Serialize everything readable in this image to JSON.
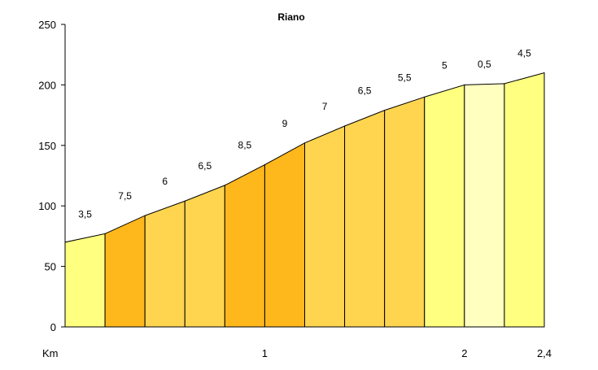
{
  "chart_data": {
    "type": "area",
    "title": "Riano",
    "xlabel": "Km",
    "ylabel": "",
    "xlim": [
      0,
      2.4
    ],
    "ylim": [
      0,
      250
    ],
    "yticks": [
      "0",
      "50",
      "100",
      "150",
      "200",
      "250"
    ],
    "xticks": [
      {
        "value": 0,
        "label": "Km"
      },
      {
        "value": 1,
        "label": "1"
      },
      {
        "value": 2,
        "label": "2"
      },
      {
        "value": 2.4,
        "label": "2,4"
      }
    ],
    "grid": false,
    "segments": [
      {
        "x0": 0.0,
        "x1": 0.2,
        "y0": 70,
        "y1": 77,
        "gradient": "3,5",
        "color": "#ffff80"
      },
      {
        "x0": 0.2,
        "x1": 0.4,
        "y0": 77,
        "y1": 92,
        "gradient": "7,5",
        "color": "#ffb81c"
      },
      {
        "x0": 0.4,
        "x1": 0.6,
        "y0": 92,
        "y1": 104,
        "gradient": "6",
        "color": "#ffd550"
      },
      {
        "x0": 0.6,
        "x1": 0.8,
        "y0": 104,
        "y1": 117,
        "gradient": "6,5",
        "color": "#ffd550"
      },
      {
        "x0": 0.8,
        "x1": 1.0,
        "y0": 117,
        "y1": 134,
        "gradient": "8,5",
        "color": "#ffb81c"
      },
      {
        "x0": 1.0,
        "x1": 1.2,
        "y0": 134,
        "y1": 152,
        "gradient": "9",
        "color": "#ffb81c"
      },
      {
        "x0": 1.2,
        "x1": 1.4,
        "y0": 152,
        "y1": 166,
        "gradient": "7",
        "color": "#ffd550"
      },
      {
        "x0": 1.4,
        "x1": 1.6,
        "y0": 166,
        "y1": 179,
        "gradient": "6,5",
        "color": "#ffd550"
      },
      {
        "x0": 1.6,
        "x1": 1.8,
        "y0": 179,
        "y1": 190,
        "gradient": "5,5",
        "color": "#ffd550"
      },
      {
        "x0": 1.8,
        "x1": 2.0,
        "y0": 190,
        "y1": 200,
        "gradient": "5",
        "color": "#ffff80"
      },
      {
        "x0": 2.0,
        "x1": 2.2,
        "y0": 200,
        "y1": 201,
        "gradient": "0,5",
        "color": "#ffffc0"
      },
      {
        "x0": 2.2,
        "x1": 2.4,
        "y0": 201,
        "y1": 210,
        "gradient": "4,5",
        "color": "#ffff80"
      }
    ]
  }
}
